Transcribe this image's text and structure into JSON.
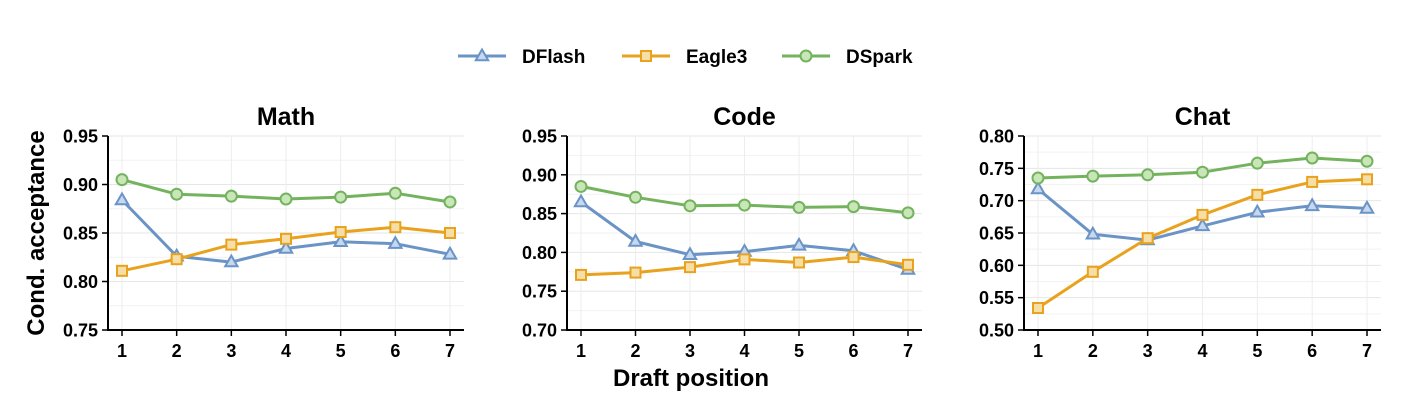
{
  "legend": [
    "DFlash",
    "Eagle3",
    "DSpark"
  ],
  "colors": {
    "DFlash": {
      "line": "#6a93c6",
      "fill": "#c5d8ef"
    },
    "Eagle3": {
      "line": "#e9a21d",
      "fill": "#f6dfa6"
    },
    "DSpark": {
      "line": "#74b35e",
      "fill": "#c8e6b8"
    }
  },
  "markers": {
    "DFlash": "triangle",
    "Eagle3": "square",
    "DSpark": "circle"
  },
  "ylabel": "Cond. acceptance",
  "xlabel": "Draft position",
  "chart_data": [
    {
      "type": "line",
      "title": "Math",
      "x": [
        1,
        2,
        3,
        4,
        5,
        6,
        7
      ],
      "ylim": [
        0.75,
        0.95
      ],
      "yticks": [
        "0.75",
        "0.80",
        "0.85",
        "0.90",
        "0.95"
      ],
      "grid": true,
      "series": [
        {
          "name": "DFlash",
          "values": [
            0.884,
            0.826,
            0.82,
            0.834,
            0.841,
            0.839,
            0.828
          ]
        },
        {
          "name": "Eagle3",
          "values": [
            0.811,
            0.823,
            0.838,
            0.844,
            0.851,
            0.856,
            0.85
          ]
        },
        {
          "name": "DSpark",
          "values": [
            0.905,
            0.89,
            0.888,
            0.885,
            0.887,
            0.891,
            0.882
          ]
        }
      ]
    },
    {
      "type": "line",
      "title": "Code",
      "x": [
        1,
        2,
        3,
        4,
        5,
        6,
        7
      ],
      "ylim": [
        0.7,
        0.95
      ],
      "yticks": [
        "0.70",
        "0.75",
        "0.80",
        "0.85",
        "0.90",
        "0.95"
      ],
      "grid": true,
      "series": [
        {
          "name": "DFlash",
          "values": [
            0.865,
            0.814,
            0.797,
            0.801,
            0.809,
            0.802,
            0.778
          ]
        },
        {
          "name": "Eagle3",
          "values": [
            0.771,
            0.774,
            0.781,
            0.791,
            0.787,
            0.794,
            0.784
          ]
        },
        {
          "name": "DSpark",
          "values": [
            0.885,
            0.871,
            0.86,
            0.861,
            0.858,
            0.859,
            0.851
          ]
        }
      ]
    },
    {
      "type": "line",
      "title": "Chat",
      "x": [
        1,
        2,
        3,
        4,
        5,
        6,
        7
      ],
      "ylim": [
        0.5,
        0.8
      ],
      "yticks": [
        "0.50",
        "0.55",
        "0.60",
        "0.65",
        "0.70",
        "0.75",
        "0.80"
      ],
      "grid": true,
      "series": [
        {
          "name": "DFlash",
          "values": [
            0.718,
            0.648,
            0.639,
            0.661,
            0.682,
            0.692,
            0.688
          ]
        },
        {
          "name": "Eagle3",
          "values": [
            0.534,
            0.59,
            0.642,
            0.678,
            0.709,
            0.729,
            0.733
          ]
        },
        {
          "name": "DSpark",
          "values": [
            0.735,
            0.738,
            0.74,
            0.744,
            0.758,
            0.766,
            0.761
          ]
        }
      ]
    }
  ]
}
